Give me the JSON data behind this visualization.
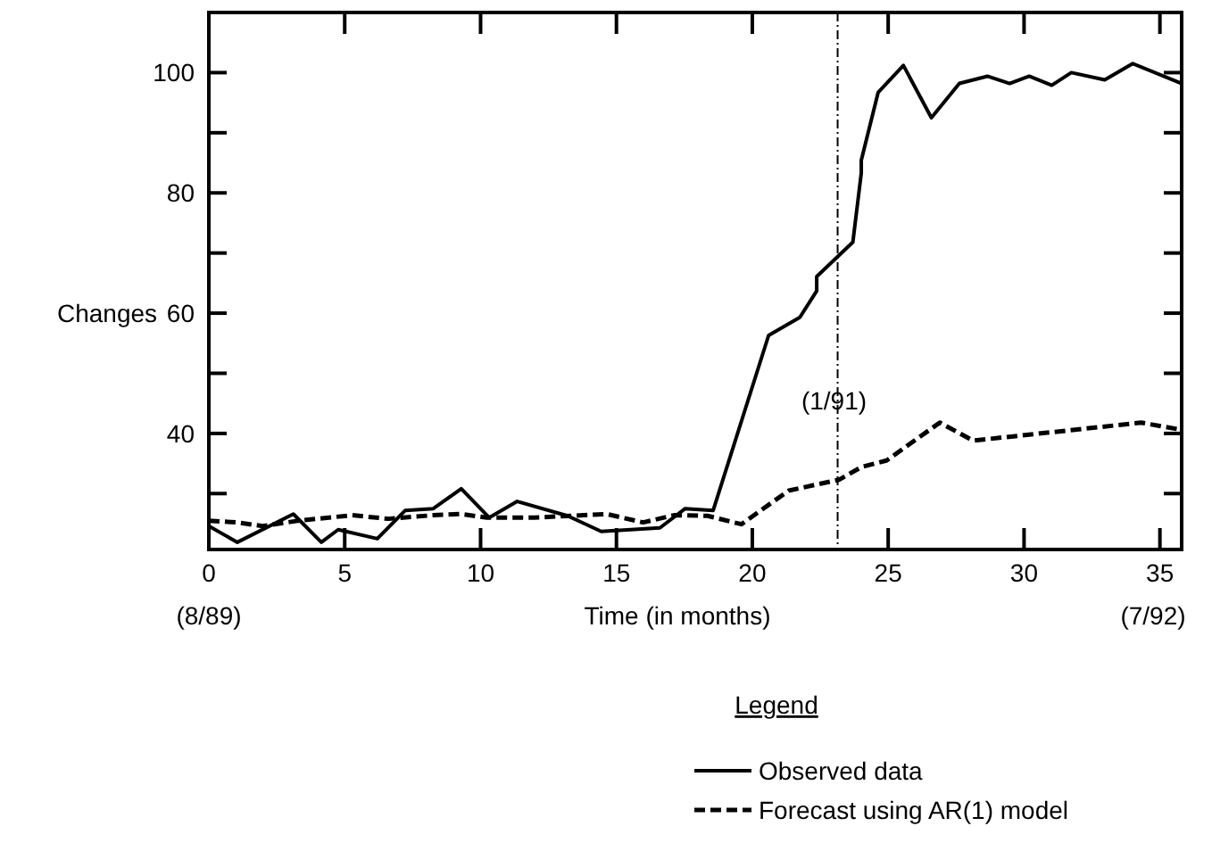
{
  "chart_data": {
    "type": "line",
    "xlabel": "Time (in months)",
    "ylabel": "Changes",
    "legend_title": "Legend",
    "xlim": [
      0,
      35.8
    ],
    "ylim": [
      20.7,
      110
    ],
    "xticks": [
      0,
      5,
      10,
      15,
      20,
      25,
      30,
      35
    ],
    "yticks": [
      {
        "value": 30,
        "label": null
      },
      40,
      {
        "value": 50,
        "label": null
      },
      60,
      {
        "value": 70,
        "label": null
      },
      80,
      {
        "value": 90,
        "label": null
      },
      100
    ],
    "series": [
      {
        "name": "Observed data",
        "color": "#000000",
        "line_style": "solid",
        "x": [
          0,
          1.05,
          3.11,
          4.14,
          4.76,
          6.2,
          7.23,
          8.26,
          9.29,
          10.32,
          11.35,
          13.2,
          14.44,
          16.6,
          17.53,
          18.56,
          20.6,
          21.75,
          22.37,
          22.37,
          23.7,
          24.01,
          24.01,
          24.63,
          25.56,
          26.59,
          27.62,
          28.65,
          29.47,
          30.19,
          31.02,
          31.74,
          32.97,
          34,
          35.8
        ],
        "values": [
          24.6,
          21.9,
          26.6,
          21.9,
          24,
          22.5,
          27.2,
          27.5,
          30.8,
          26,
          28.7,
          26.3,
          23.7,
          24.3,
          27.5,
          27.2,
          56.3,
          59.3,
          63.7,
          66.1,
          71.8,
          83.3,
          85.4,
          96.7,
          101.2,
          92.5,
          98.2,
          99.4,
          98.2,
          99.4,
          97.9,
          100,
          98.8,
          101.5,
          98.2
        ]
      },
      {
        "name": "Forecast using AR(1) model",
        "color": "#000000",
        "line_style": "dashed",
        "x": [
          0,
          1.05,
          1.98,
          3.32,
          5.28,
          6.6,
          8.26,
          9.29,
          10.22,
          11.97,
          14.64,
          15.98,
          17.12,
          18.35,
          19.6,
          21.34,
          23.19,
          24.01,
          24.94,
          26.9,
          28.13,
          34.31,
          35.8
        ],
        "values": [
          25.5,
          25.2,
          24.6,
          25.5,
          26.4,
          25.8,
          26.4,
          26.6,
          26,
          26,
          26.6,
          25.2,
          26.4,
          26.3,
          24.9,
          30.5,
          32.3,
          34.4,
          35.5,
          41.8,
          38.8,
          41.8,
          40.6
        ]
      }
    ],
    "ref_lines": [
      {
        "axis": "x",
        "value": 23.14,
        "line_style": "dashdot"
      }
    ],
    "annotations": [
      "(8/89)",
      "(7/92)",
      "(1/91)"
    ],
    "legend": "bottom",
    "grid": false
  }
}
